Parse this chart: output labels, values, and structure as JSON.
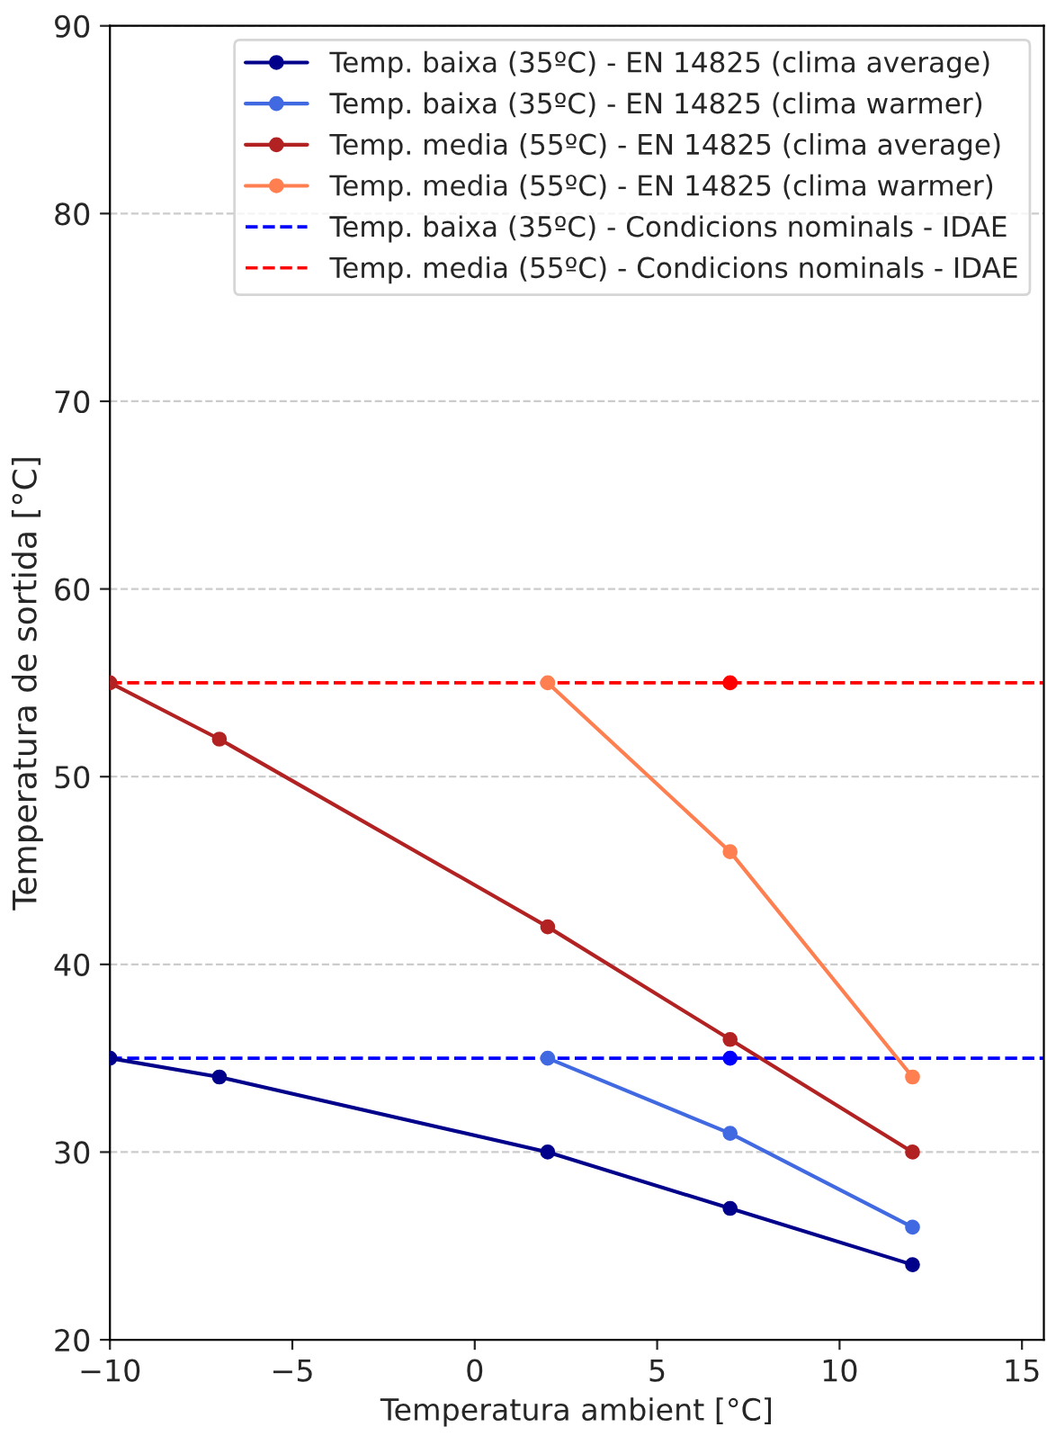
{
  "chart_data": {
    "type": "line",
    "xlabel": "Temperatura ambient [°C]",
    "ylabel": "Temperatura de sortida [°C]",
    "xlim": [
      -10,
      15.6
    ],
    "xticks": [
      -10,
      -5,
      0,
      5,
      10,
      15
    ],
    "ylim": [
      20,
      90
    ],
    "yticks": [
      20,
      30,
      40,
      50,
      60,
      70,
      80,
      90
    ],
    "grid": "y",
    "legend": "top right",
    "marker": "circle",
    "series": [
      {
        "name": "Temp. baixa (35ºC) - EN 14825 (clima average)",
        "color": "#00008b",
        "x": [
          -10,
          -7,
          2,
          7,
          12
        ],
        "values": [
          35,
          34,
          30,
          27,
          24
        ]
      },
      {
        "name": "Temp. baixa (35ºC) - EN 14825 (clima warmer)",
        "color": "#4169e1",
        "x": [
          2,
          7,
          12
        ],
        "values": [
          35,
          31,
          26
        ]
      },
      {
        "name": "Temp. media (55ºC) - EN 14825 (clima average)",
        "color": "#b22222",
        "x": [
          -10,
          -7,
          2,
          7,
          12
        ],
        "values": [
          55,
          52,
          42,
          36,
          30
        ]
      },
      {
        "name": "Temp. media (55ºC) - EN 14825 (clima warmer)",
        "color": "#ff7f50",
        "x": [
          2,
          7,
          12
        ],
        "values": [
          55,
          46,
          34
        ]
      },
      {
        "type": "scatter",
        "color": "#0000ff",
        "x": [
          7
        ],
        "values": [
          35
        ]
      },
      {
        "type": "scatter",
        "color": "#ff0000",
        "x": [
          7
        ],
        "values": [
          55
        ]
      }
    ],
    "ref_lines": [
      {
        "axis": "y",
        "value": 35,
        "label": "Temp. baixa (35ºC) - Condicions nominals - IDAE",
        "color": "#0000ff",
        "line_style": "dashed"
      },
      {
        "axis": "y",
        "value": 55,
        "label": "Temp. media (55ºC) - Condicions nominals - IDAE",
        "color": "#ff0000",
        "line_style": "dashed"
      }
    ]
  }
}
